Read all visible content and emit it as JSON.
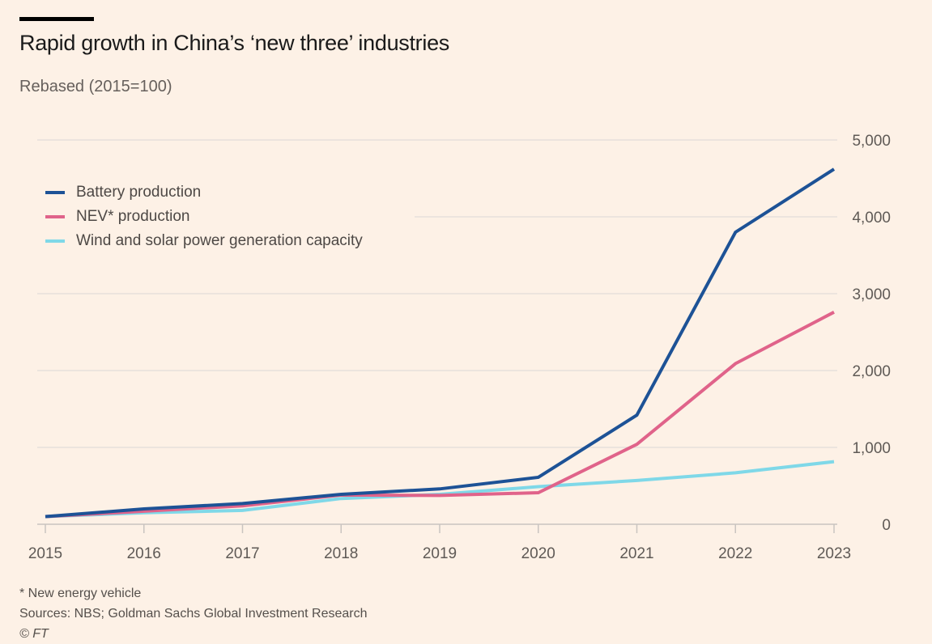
{
  "header": {
    "title": "Rapid growth in China’s ‘new three’ industries",
    "subtitle": "Rebased (2015=100)"
  },
  "legend": [
    {
      "label": "Battery production",
      "color": "#1d5296"
    },
    {
      "label": "NEV* production",
      "color": "#e0638a"
    },
    {
      "label": "Wind and solar power generation capacity",
      "color": "#7fd8e8"
    }
  ],
  "footer": {
    "note": "* New energy vehicle",
    "sources": "Sources: NBS; Goldman Sachs Global Investment Research",
    "copyright": "© FT"
  },
  "chart_data": {
    "type": "line",
    "title": "Rapid growth in China’s ‘new three’ industries",
    "subtitle": "Rebased (2015=100)",
    "xlabel": "",
    "ylabel": "",
    "x": [
      2015,
      2016,
      2017,
      2018,
      2019,
      2020,
      2021,
      2022,
      2023
    ],
    "x_tick_labels": [
      "2015",
      "2016",
      "2017",
      "2018",
      "2019",
      "2020",
      "2021",
      "2022",
      "2023"
    ],
    "ylim": [
      0,
      5000
    ],
    "y_ticks": [
      0,
      1000,
      2000,
      3000,
      4000,
      5000
    ],
    "y_tick_labels": [
      "0",
      "1,000",
      "2,000",
      "3,000",
      "4,000",
      "5,000"
    ],
    "y_axis_side": "right",
    "grid": true,
    "legend_position": "top-left",
    "series": [
      {
        "name": "Battery production",
        "color": "#1d5296",
        "values": [
          100,
          200,
          270,
          390,
          460,
          610,
          1420,
          3800,
          4620
        ]
      },
      {
        "name": "NEV* production",
        "color": "#e0638a",
        "values": [
          100,
          170,
          240,
          380,
          375,
          410,
          1040,
          2090,
          2760
        ]
      },
      {
        "name": "Wind and solar power generation capacity",
        "color": "#7fd8e8",
        "values": [
          100,
          150,
          180,
          335,
          390,
          490,
          570,
          670,
          815
        ]
      }
    ]
  }
}
